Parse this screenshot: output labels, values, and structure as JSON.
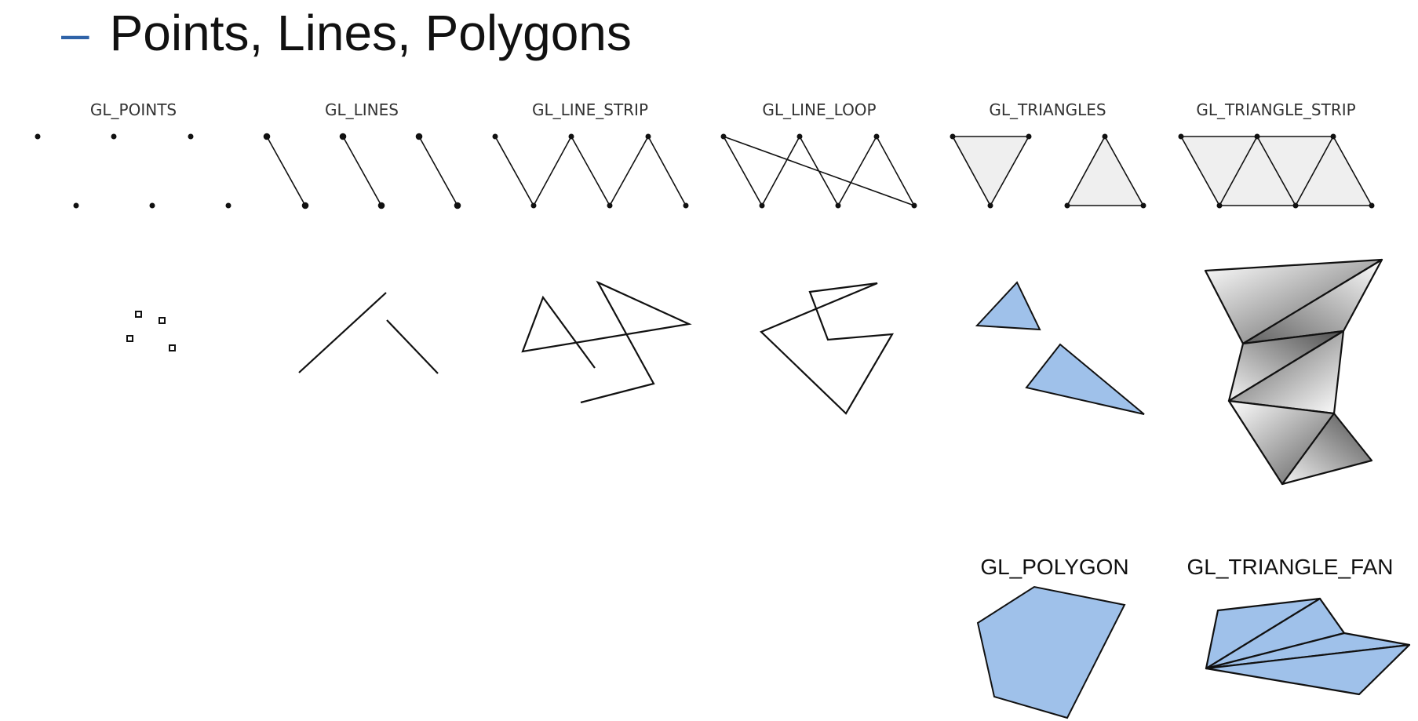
{
  "slide": {
    "bullet": "–",
    "title": "Points, Lines, Polygons"
  },
  "primitives": [
    {
      "key": "points",
      "label": "GL_POINTS"
    },
    {
      "key": "lines",
      "label": "GL_LINES"
    },
    {
      "key": "line_strip",
      "label": "GL_LINE_STRIP"
    },
    {
      "key": "line_loop",
      "label": "GL_LINE_LOOP"
    },
    {
      "key": "triangles",
      "label": "GL_TRIANGLES"
    },
    {
      "key": "triangle_strip",
      "label": "GL_TRIANGLE_STRIP"
    },
    {
      "key": "polygon",
      "label": "GL_POLYGON"
    },
    {
      "key": "triangle_fan",
      "label": "GL_TRIANGLE_FAN"
    }
  ],
  "colors": {
    "bullet": "#2f63a8",
    "fill_light": "#efefef",
    "fill_blue": "#9fc1ea",
    "stroke": "#111111"
  }
}
